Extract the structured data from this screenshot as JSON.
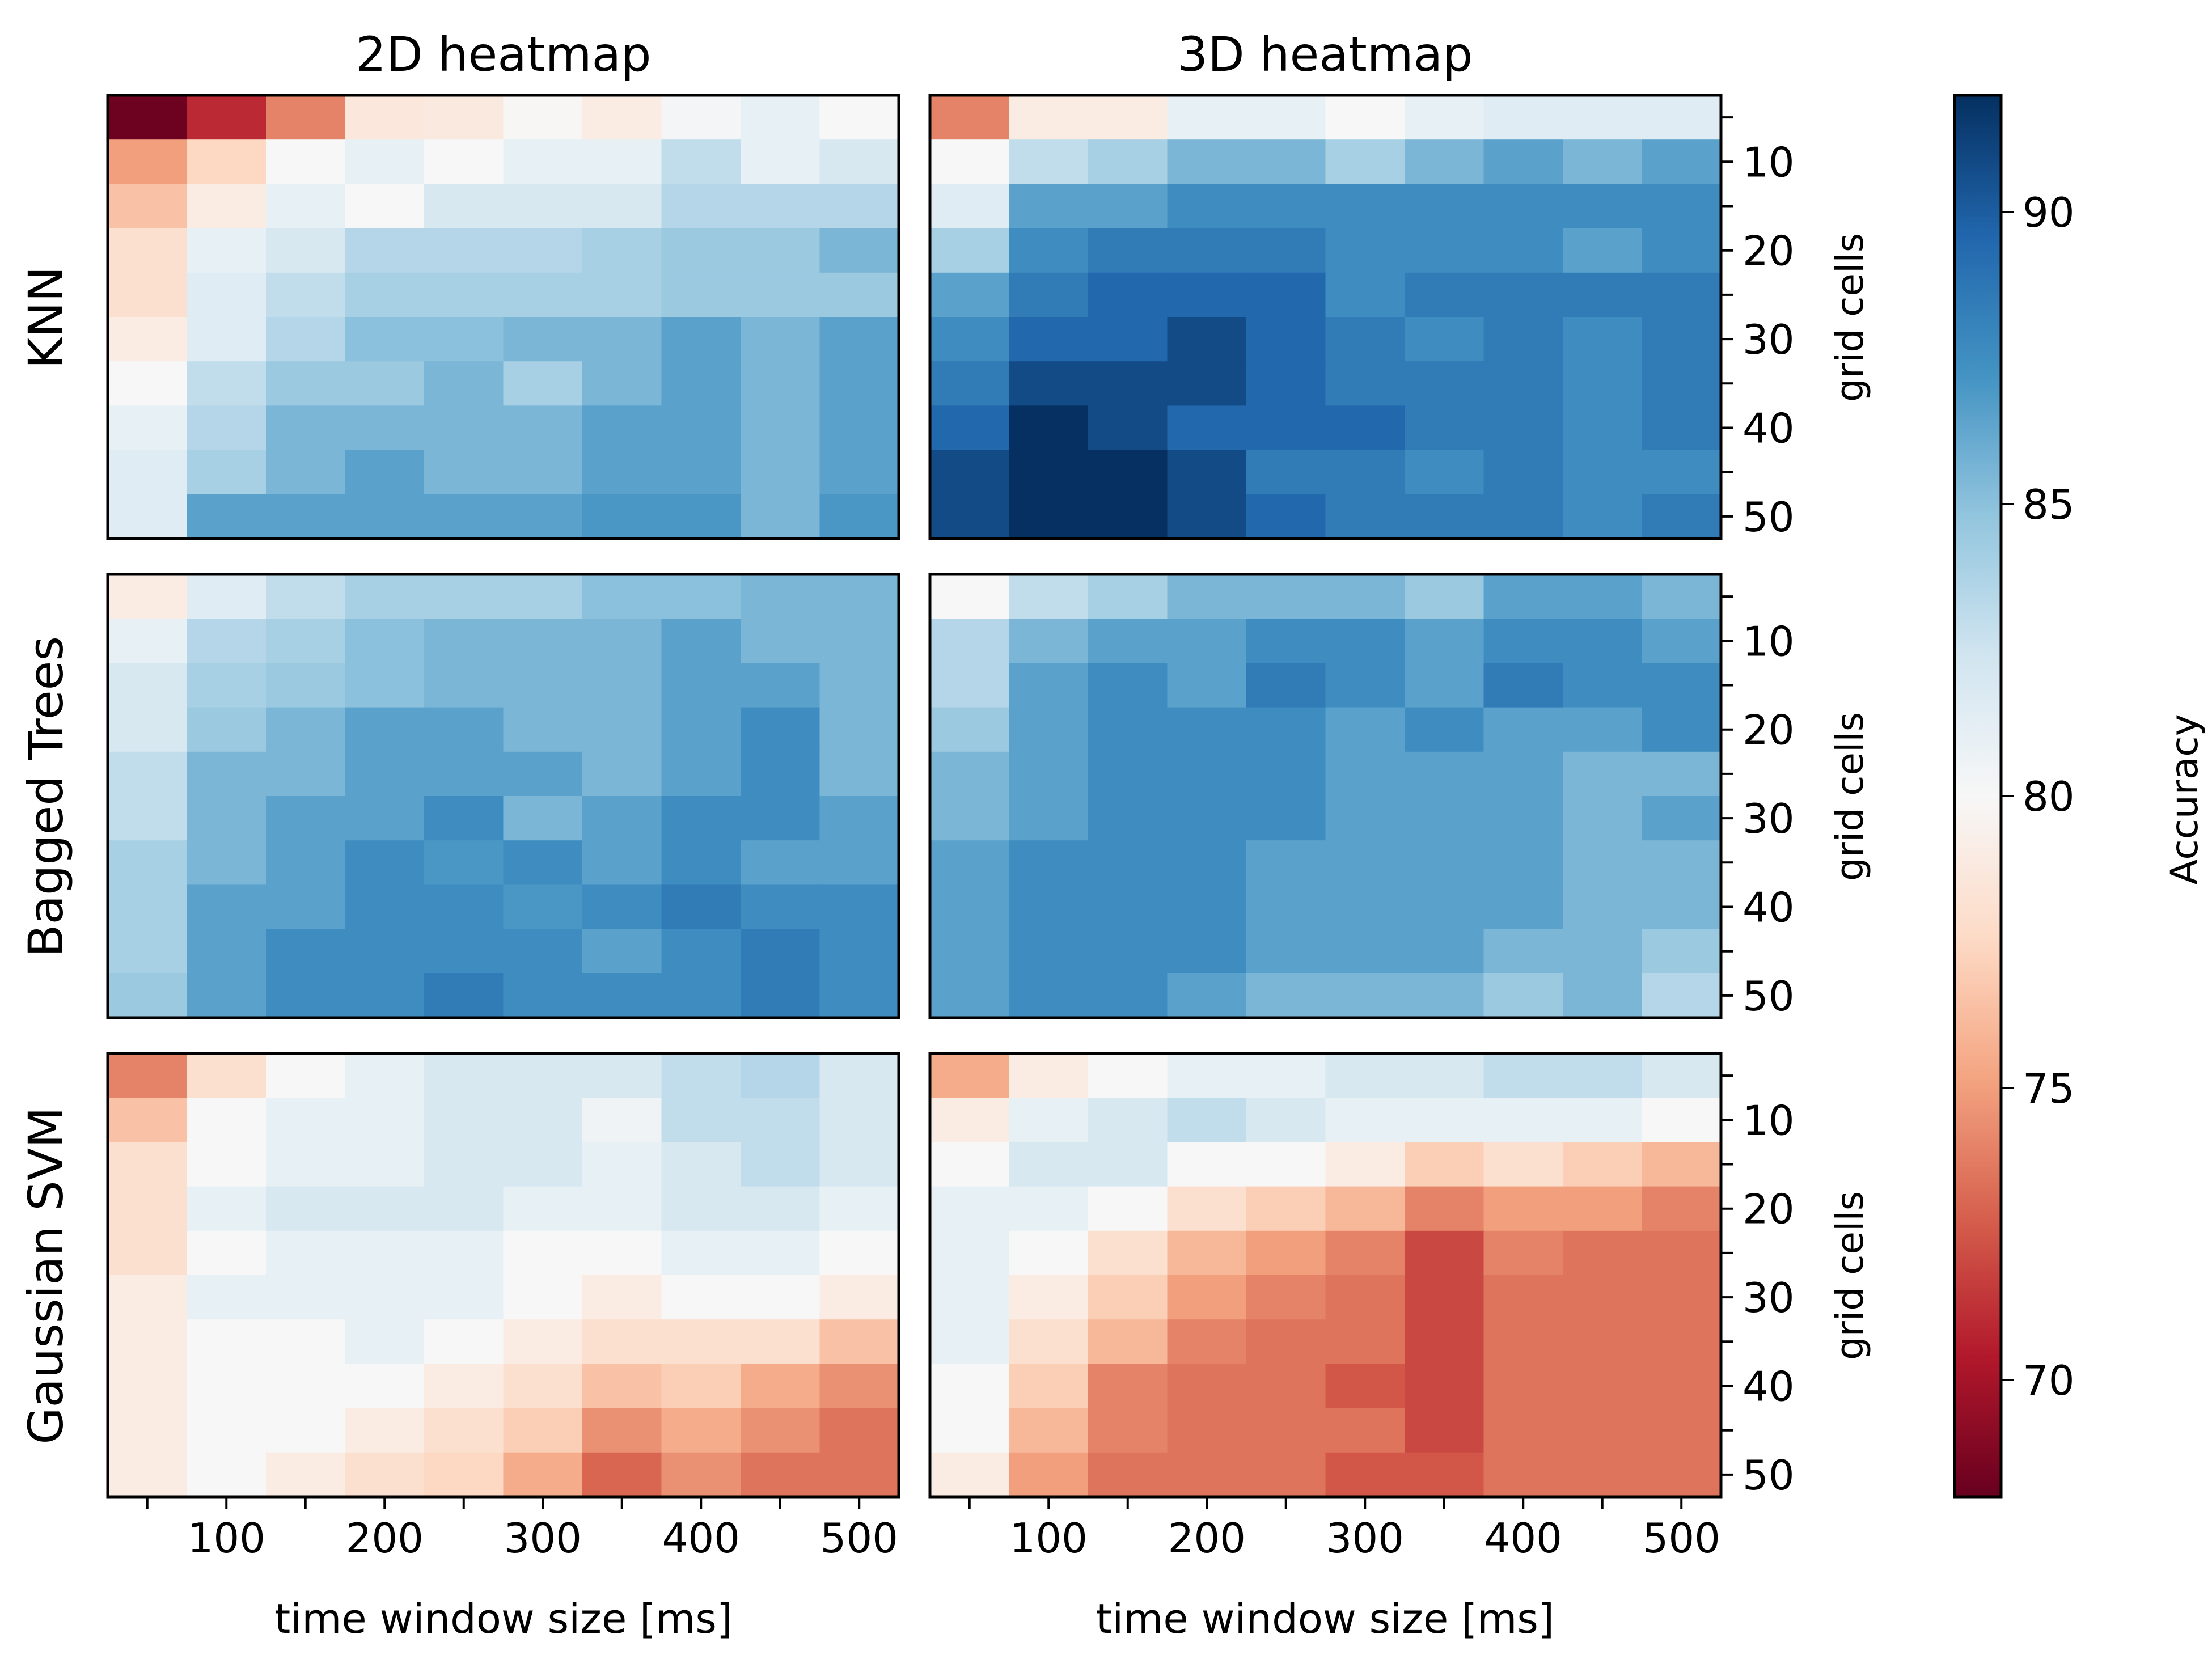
{
  "chart_data": {
    "type": "heatmap",
    "column_titles": [
      "2D heatmap",
      "3D heatmap"
    ],
    "row_labels": [
      "KNN",
      "Bagged Trees",
      "Gaussian SVM"
    ],
    "xlabel": "time window size [ms]",
    "ylabel": "grid cells",
    "x_values": [
      50,
      100,
      150,
      200,
      250,
      300,
      350,
      400,
      450,
      500
    ],
    "y_values": [
      5,
      10,
      15,
      20,
      25,
      30,
      35,
      40,
      45,
      50
    ],
    "x_tick_labels": [
      "100",
      "200",
      "300",
      "400",
      "500"
    ],
    "y_tick_labels": [
      "10",
      "20",
      "30",
      "40",
      "50"
    ],
    "colorbar": {
      "label": "Accuracy",
      "colormap": "RdBu",
      "range": [
        68,
        92
      ],
      "tick_labels": [
        "70",
        "75",
        "80",
        "85",
        "90"
      ]
    },
    "panels": [
      {
        "model": "KNN",
        "features": "2D heatmap",
        "values": [
          [
            68.2,
            71.0,
            74.0,
            78.6,
            78.8,
            79.9,
            79.0,
            80.2,
            81.0,
            80.0
          ],
          [
            75.0,
            77.5,
            80.0,
            81.0,
            80.0,
            81.0,
            81.0,
            83.0,
            81.0,
            82.0
          ],
          [
            76.5,
            79.0,
            81.0,
            80.0,
            82.0,
            82.0,
            82.0,
            83.5,
            83.5,
            83.5
          ],
          [
            78.0,
            81.0,
            82.0,
            83.5,
            83.5,
            83.5,
            84.0,
            84.5,
            84.5,
            85.5
          ],
          [
            78.0,
            81.5,
            83.0,
            84.0,
            84.0,
            84.0,
            84.0,
            84.5,
            84.5,
            84.5
          ],
          [
            79.0,
            81.5,
            83.5,
            85.0,
            85.0,
            85.5,
            85.5,
            86.5,
            85.5,
            86.5
          ],
          [
            80.0,
            83.0,
            84.5,
            84.5,
            85.5,
            84.0,
            85.5,
            86.5,
            85.5,
            86.5
          ],
          [
            81.0,
            83.5,
            85.5,
            85.5,
            85.5,
            85.5,
            86.5,
            86.5,
            85.5,
            86.5
          ],
          [
            81.5,
            84.0,
            85.5,
            86.5,
            85.5,
            85.5,
            86.5,
            86.5,
            85.5,
            86.5
          ],
          [
            81.5,
            86.5,
            86.5,
            86.5,
            86.5,
            86.5,
            87.0,
            87.0,
            85.5,
            87.0
          ]
        ]
      },
      {
        "model": "KNN",
        "features": "3D heatmap",
        "values": [
          [
            74.0,
            79.0,
            79.0,
            81.0,
            81.0,
            80.0,
            81.0,
            81.5,
            81.5,
            81.5
          ],
          [
            80.0,
            83.0,
            84.0,
            85.5,
            85.5,
            84.0,
            85.5,
            86.5,
            85.5,
            86.5
          ],
          [
            81.5,
            86.5,
            86.5,
            87.5,
            87.5,
            87.5,
            87.5,
            87.5,
            87.5,
            87.5
          ],
          [
            84.0,
            87.5,
            88.5,
            88.5,
            88.5,
            87.5,
            87.5,
            87.5,
            86.5,
            87.5
          ],
          [
            86.5,
            88.5,
            89.5,
            89.5,
            89.5,
            87.5,
            88.5,
            88.5,
            88.5,
            88.5
          ],
          [
            87.5,
            89.5,
            89.5,
            90.8,
            89.5,
            88.5,
            87.5,
            88.5,
            87.5,
            88.5
          ],
          [
            88.5,
            90.8,
            90.8,
            90.8,
            89.5,
            88.5,
            88.5,
            88.5,
            87.5,
            88.5
          ],
          [
            89.5,
            92.0,
            90.8,
            89.5,
            89.5,
            89.5,
            88.5,
            88.5,
            87.5,
            88.5
          ],
          [
            90.8,
            92.0,
            92.0,
            90.8,
            88.5,
            88.5,
            87.5,
            88.5,
            87.5,
            87.5
          ],
          [
            90.8,
            92.0,
            92.0,
            90.8,
            89.5,
            88.5,
            88.5,
            88.5,
            87.5,
            88.5
          ]
        ]
      },
      {
        "model": "Bagged Trees",
        "features": "2D heatmap",
        "values": [
          [
            79.0,
            81.5,
            83.0,
            84.0,
            84.0,
            84.0,
            85.0,
            85.0,
            85.5,
            85.5
          ],
          [
            81.0,
            83.5,
            84.0,
            85.0,
            85.5,
            85.5,
            85.5,
            86.5,
            85.5,
            85.5
          ],
          [
            82.0,
            84.0,
            84.5,
            85.0,
            85.5,
            85.5,
            85.5,
            86.5,
            86.5,
            85.5
          ],
          [
            82.0,
            84.5,
            85.5,
            86.5,
            86.5,
            85.5,
            85.5,
            86.5,
            87.5,
            85.5
          ],
          [
            83.0,
            85.5,
            85.5,
            86.5,
            86.5,
            86.5,
            85.5,
            86.5,
            87.5,
            85.5
          ],
          [
            83.0,
            85.5,
            86.5,
            86.5,
            87.5,
            85.5,
            86.5,
            87.5,
            87.5,
            86.5
          ],
          [
            84.0,
            85.5,
            86.5,
            87.5,
            87.0,
            87.5,
            86.5,
            87.5,
            86.5,
            86.5
          ],
          [
            84.0,
            86.5,
            86.5,
            87.5,
            87.5,
            87.0,
            87.5,
            88.5,
            87.5,
            87.5
          ],
          [
            84.0,
            86.5,
            87.5,
            87.5,
            87.5,
            87.5,
            86.5,
            87.5,
            88.5,
            87.5
          ],
          [
            84.5,
            86.5,
            87.5,
            87.5,
            88.5,
            87.5,
            87.5,
            87.5,
            88.5,
            87.5
          ]
        ]
      },
      {
        "model": "Bagged Trees",
        "features": "3D heatmap",
        "values": [
          [
            80.0,
            83.0,
            84.0,
            85.5,
            85.5,
            85.5,
            84.5,
            86.5,
            86.5,
            85.5
          ],
          [
            83.5,
            85.5,
            86.5,
            86.5,
            87.5,
            87.5,
            86.5,
            87.5,
            87.5,
            86.5
          ],
          [
            83.5,
            86.5,
            87.5,
            86.5,
            88.5,
            87.5,
            86.5,
            88.5,
            87.5,
            87.5
          ],
          [
            84.5,
            86.5,
            87.5,
            87.5,
            87.5,
            86.5,
            87.5,
            86.5,
            86.5,
            87.5
          ],
          [
            85.5,
            86.5,
            87.5,
            87.5,
            87.5,
            86.5,
            86.5,
            86.5,
            85.5,
            85.5
          ],
          [
            85.5,
            86.5,
            87.5,
            87.5,
            87.5,
            86.5,
            86.5,
            86.5,
            85.5,
            86.5
          ],
          [
            86.5,
            87.5,
            87.5,
            87.5,
            86.5,
            86.5,
            86.5,
            86.5,
            85.5,
            85.5
          ],
          [
            86.5,
            87.5,
            87.5,
            87.5,
            86.5,
            86.5,
            86.5,
            86.5,
            85.5,
            85.5
          ],
          [
            86.5,
            87.5,
            87.5,
            87.5,
            86.5,
            86.5,
            86.5,
            85.5,
            85.5,
            84.5
          ],
          [
            86.5,
            87.5,
            87.5,
            86.5,
            85.5,
            85.5,
            85.5,
            84.5,
            85.5,
            83.5
          ]
        ]
      },
      {
        "model": "Gaussian SVM",
        "features": "2D heatmap",
        "values": [
          [
            74.0,
            78.0,
            80.0,
            81.0,
            82.0,
            82.0,
            82.0,
            83.0,
            83.5,
            82.0
          ],
          [
            76.5,
            80.0,
            81.0,
            81.0,
            82.0,
            82.0,
            80.5,
            83.0,
            83.0,
            82.0
          ],
          [
            78.0,
            80.0,
            81.0,
            81.0,
            82.0,
            82.0,
            81.0,
            82.0,
            83.0,
            82.0
          ],
          [
            78.0,
            81.0,
            82.0,
            82.0,
            82.0,
            81.0,
            81.0,
            82.0,
            82.0,
            81.0
          ],
          [
            78.0,
            80.0,
            81.0,
            81.0,
            81.0,
            80.0,
            80.0,
            81.0,
            81.0,
            80.0
          ],
          [
            79.0,
            81.0,
            81.0,
            81.0,
            81.0,
            80.0,
            79.0,
            80.0,
            80.0,
            79.0
          ],
          [
            79.0,
            80.0,
            80.0,
            81.0,
            80.0,
            79.0,
            78.0,
            78.0,
            78.0,
            76.5
          ],
          [
            79.0,
            80.0,
            80.0,
            80.0,
            79.0,
            78.0,
            76.5,
            77.0,
            75.5,
            74.5
          ],
          [
            79.0,
            80.0,
            80.0,
            79.0,
            78.0,
            77.0,
            74.5,
            75.5,
            74.5,
            73.5
          ],
          [
            79.0,
            80.0,
            79.0,
            78.0,
            77.5,
            75.5,
            73.0,
            74.5,
            73.5,
            73.5
          ]
        ]
      },
      {
        "model": "Gaussian SVM",
        "features": "3D heatmap",
        "values": [
          [
            75.5,
            79.0,
            80.0,
            81.0,
            81.0,
            82.0,
            82.0,
            83.0,
            83.0,
            82.0
          ],
          [
            79.0,
            81.0,
            82.0,
            83.0,
            82.0,
            81.0,
            81.0,
            81.0,
            81.0,
            80.0
          ],
          [
            80.0,
            82.0,
            82.0,
            80.0,
            80.0,
            79.0,
            77.0,
            78.0,
            77.0,
            76.0
          ],
          [
            81.0,
            81.0,
            80.0,
            78.0,
            77.0,
            76.0,
            74.0,
            75.0,
            75.0,
            74.0
          ],
          [
            81.0,
            80.0,
            78.0,
            76.0,
            75.0,
            74.0,
            72.0,
            74.0,
            73.5,
            73.5
          ],
          [
            81.0,
            79.0,
            77.0,
            75.0,
            74.0,
            73.5,
            72.0,
            73.5,
            73.5,
            73.5
          ],
          [
            81.0,
            78.0,
            76.0,
            74.0,
            73.5,
            73.5,
            72.0,
            73.5,
            73.5,
            73.5
          ],
          [
            80.0,
            77.0,
            74.0,
            73.5,
            73.5,
            72.5,
            72.0,
            73.5,
            73.5,
            73.5
          ],
          [
            80.0,
            76.0,
            74.0,
            73.5,
            73.5,
            73.5,
            72.0,
            73.5,
            73.5,
            73.5
          ],
          [
            79.0,
            75.0,
            73.5,
            73.5,
            73.5,
            72.5,
            72.5,
            73.5,
            73.5,
            73.5
          ]
        ]
      }
    ]
  }
}
